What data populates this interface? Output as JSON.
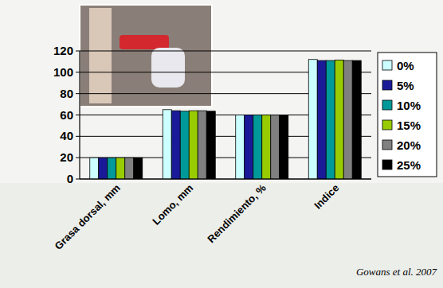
{
  "chart_data": {
    "type": "bar",
    "categories": [
      "Grasa dorsal, mm",
      "Lomo, mm",
      "Rendimiento, %",
      "Indice"
    ],
    "series": [
      {
        "name": "0%",
        "color": "#ccffff",
        "values": [
          20,
          65,
          60,
          112
        ]
      },
      {
        "name": "5%",
        "color": "#1a1a99",
        "values": [
          20,
          64,
          60,
          111
        ]
      },
      {
        "name": "10%",
        "color": "#009999",
        "values": [
          20,
          63.5,
          60,
          111
        ]
      },
      {
        "name": "15%",
        "color": "#99cc00",
        "values": [
          20,
          64,
          60,
          111.5
        ]
      },
      {
        "name": "20%",
        "color": "#808080",
        "values": [
          20,
          64,
          60,
          111
        ]
      },
      {
        "name": "25%",
        "color": "#000000",
        "values": [
          20,
          63.5,
          60,
          111
        ]
      }
    ],
    "ylim": [
      0,
      120
    ],
    "yticks": [
      0,
      20,
      40,
      60,
      80,
      100,
      120
    ],
    "grid": true,
    "legend": "right",
    "annotations": [
      "Gowans et al. 2007"
    ]
  }
}
